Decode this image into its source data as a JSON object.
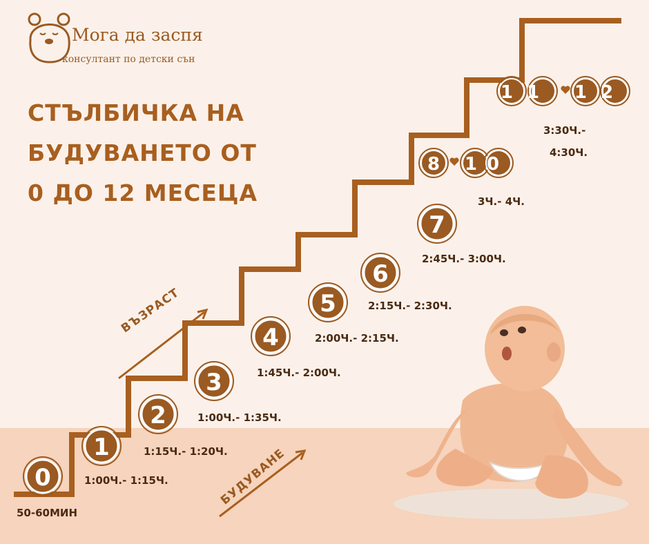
{
  "brand": {
    "name": "Мога да заспя",
    "tagline": "консултант по детски сън",
    "color": "#9a5a22"
  },
  "title": {
    "line1": "СТЪЛБИЧКА НА",
    "line2": "БУДУВАНЕТО ОТ",
    "line3": "0 ДО 12 МЕСЕЦА"
  },
  "axis_labels": {
    "age": "ВЪЗРАСТ",
    "wake": "БУДУВАНЕ"
  },
  "steps": [
    {
      "badge": [
        "0"
      ],
      "wake_window": "50-60МИН"
    },
    {
      "badge": [
        "1"
      ],
      "wake_window": "1:00Ч.- 1:15Ч."
    },
    {
      "badge": [
        "2"
      ],
      "wake_window": "1:15Ч.- 1:20Ч."
    },
    {
      "badge": [
        "3"
      ],
      "wake_window": "1:00Ч.- 1:35Ч."
    },
    {
      "badge": [
        "4"
      ],
      "wake_window": "1:45Ч.- 2:00Ч."
    },
    {
      "badge": [
        "5"
      ],
      "wake_window": "2:00Ч.- 2:15Ч."
    },
    {
      "badge": [
        "6"
      ],
      "wake_window": "2:15Ч.- 2:30Ч."
    },
    {
      "badge": [
        "7"
      ],
      "wake_window": "2:45Ч.- 3:00Ч."
    },
    {
      "badge": [
        "8",
        "10"
      ],
      "wake_window": "3Ч.- 4Ч."
    },
    {
      "badge": [
        "11",
        "12"
      ],
      "wake_window_line1": "3:30Ч.-",
      "wake_window_line2": "4:30Ч."
    }
  ],
  "colors": {
    "accent": "#a85f1f",
    "badge": "#9a5a22",
    "background": "#fbf1ea",
    "floor": "#f6d4bd"
  }
}
